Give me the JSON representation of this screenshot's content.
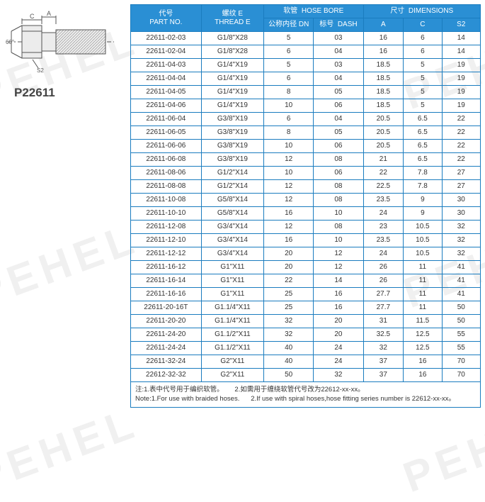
{
  "part_label": "P22611",
  "watermark_text": "PEHEL",
  "diagram": {
    "labels": {
      "angle": "60°",
      "C": "C",
      "A": "A",
      "S2": "S2"
    }
  },
  "header": {
    "part_no": {
      "cn": "代号",
      "en": "PART NO."
    },
    "thread": {
      "cn": "螺纹  E",
      "en": "THREAD E"
    },
    "bore": {
      "cn": "软管",
      "en": "HOSE BORE",
      "dn_cn": "公称内径 DN",
      "dash_cn": "标号",
      "dash_en": "DASH"
    },
    "dim": {
      "cn": "尺寸",
      "en": "DIMENSIONS",
      "A": "A",
      "C": "C",
      "S2": "S2"
    }
  },
  "rows": [
    [
      "22611-02-03",
      "G1/8\"X28",
      "5",
      "03",
      "16",
      "6",
      "14"
    ],
    [
      "22611-02-04",
      "G1/8\"X28",
      "6",
      "04",
      "16",
      "6",
      "14"
    ],
    [
      "22611-04-03",
      "G1/4\"X19",
      "5",
      "03",
      "18.5",
      "5",
      "19"
    ],
    [
      "22611-04-04",
      "G1/4\"X19",
      "6",
      "04",
      "18.5",
      "5",
      "19"
    ],
    [
      "22611-04-05",
      "G1/4\"X19",
      "8",
      "05",
      "18.5",
      "5",
      "19"
    ],
    [
      "22611-04-06",
      "G1/4\"X19",
      "10",
      "06",
      "18.5",
      "5",
      "19"
    ],
    [
      "22611-06-04",
      "G3/8\"X19",
      "6",
      "04",
      "20.5",
      "6.5",
      "22"
    ],
    [
      "22611-06-05",
      "G3/8\"X19",
      "8",
      "05",
      "20.5",
      "6.5",
      "22"
    ],
    [
      "22611-06-06",
      "G3/8\"X19",
      "10",
      "06",
      "20.5",
      "6.5",
      "22"
    ],
    [
      "22611-06-08",
      "G3/8\"X19",
      "12",
      "08",
      "21",
      "6.5",
      "22"
    ],
    [
      "22611-08-06",
      "G1/2\"X14",
      "10",
      "06",
      "22",
      "7.8",
      "27"
    ],
    [
      "22611-08-08",
      "G1/2\"X14",
      "12",
      "08",
      "22.5",
      "7.8",
      "27"
    ],
    [
      "22611-10-08",
      "G5/8\"X14",
      "12",
      "08",
      "23.5",
      "9",
      "30"
    ],
    [
      "22611-10-10",
      "G5/8\"X14",
      "16",
      "10",
      "24",
      "9",
      "30"
    ],
    [
      "22611-12-08",
      "G3/4\"X14",
      "12",
      "08",
      "23",
      "10.5",
      "32"
    ],
    [
      "22611-12-10",
      "G3/4\"X14",
      "16",
      "10",
      "23.5",
      "10.5",
      "32"
    ],
    [
      "22611-12-12",
      "G3/4\"X14",
      "20",
      "12",
      "24",
      "10.5",
      "32"
    ],
    [
      "22611-16-12",
      "G1\"X11",
      "20",
      "12",
      "26",
      "11",
      "41"
    ],
    [
      "22611-16-14",
      "G1\"X11",
      "22",
      "14",
      "26",
      "11",
      "41"
    ],
    [
      "22611-16-16",
      "G1\"X11",
      "25",
      "16",
      "27.7",
      "11",
      "41"
    ],
    [
      "22611-20-16T",
      "G1.1/4\"X11",
      "25",
      "16",
      "27.7",
      "11",
      "50"
    ],
    [
      "22611-20-20",
      "G1.1/4\"X11",
      "32",
      "20",
      "31",
      "11.5",
      "50"
    ],
    [
      "22611-24-20",
      "G1.1/2\"X11",
      "32",
      "20",
      "32.5",
      "12.5",
      "55"
    ],
    [
      "22611-24-24",
      "G1.1/2\"X11",
      "40",
      "24",
      "32",
      "12.5",
      "55"
    ],
    [
      "22611-32-24",
      "G2\"X11",
      "40",
      "24",
      "37",
      "16",
      "70"
    ],
    [
      "22612-32-32",
      "G2\"X11",
      "50",
      "32",
      "37",
      "16",
      "70"
    ]
  ],
  "notes": {
    "line1a": "注:1.表中代号用于编织软管。",
    "line1b": "2.如需用于缠绕软管代号改为22612-xx-xx。",
    "line2a": "Note:1.For use with braided hoses.",
    "line2b": "2.If use with spiral hoses,hose fitting series number is 22612-xx-xx。"
  },
  "colors": {
    "header_bg": "#2a8fd4",
    "border": "#1a7cbf"
  },
  "col_widths": [
    "88",
    "78",
    "62",
    "62",
    "50",
    "48",
    "48"
  ]
}
